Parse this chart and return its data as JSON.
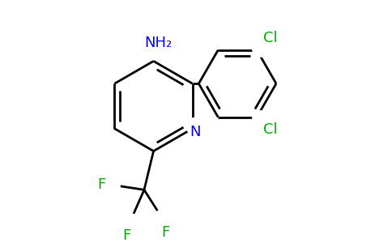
{
  "background_color": "#ffffff",
  "bond_color": "#000000",
  "nitrogen_color": "#0000ff",
  "halogen_color": "#00aa00",
  "amino_color": "#0000ff",
  "line_width": 2.0,
  "figsize": [
    4.84,
    3.0
  ],
  "dpi": 100,
  "NH2_label": "NH₂",
  "N_label": "N",
  "Cl1_label": "Cl",
  "Cl2_label": "Cl",
  "F1_label": "F",
  "F2_label": "F",
  "F3_label": "F",
  "font_size": 13,
  "xlim": [
    -0.8,
    3.6
  ],
  "ylim": [
    -1.6,
    1.9
  ]
}
